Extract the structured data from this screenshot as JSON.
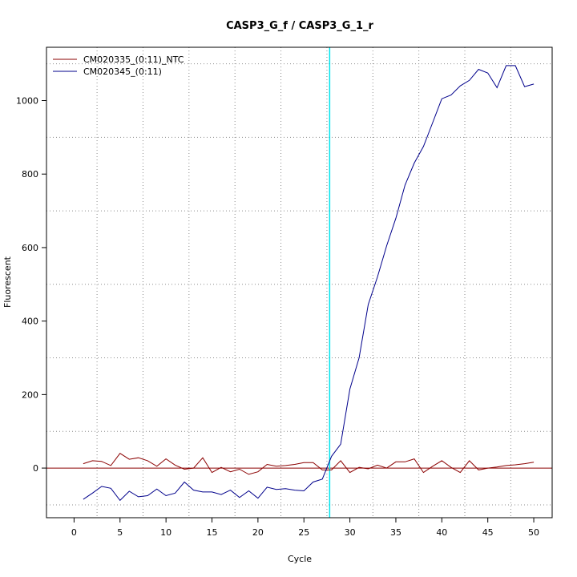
{
  "chart_data": {
    "type": "line",
    "title": "CASP3_G_f / CASP3_G_1_r",
    "xlabel": "Cycle",
    "ylabel": "Fluorescent",
    "xlim": [
      -3,
      52
    ],
    "ylim": [
      -135,
      1145
    ],
    "x_ticks": [
      0,
      5,
      10,
      15,
      20,
      25,
      30,
      35,
      40,
      45,
      50
    ],
    "y_ticks": [
      0,
      200,
      400,
      600,
      800,
      1000
    ],
    "grid": true,
    "legend_position": "top-left",
    "threshold": {
      "x": 27.8,
      "color": "#00e5ee"
    },
    "baseline": {
      "y": 0,
      "color": "#8b0000"
    },
    "x": [
      1,
      2,
      3,
      4,
      5,
      6,
      7,
      8,
      9,
      10,
      11,
      12,
      13,
      14,
      15,
      16,
      17,
      18,
      19,
      20,
      21,
      22,
      23,
      24,
      25,
      26,
      27,
      28,
      29,
      30,
      31,
      32,
      33,
      34,
      35,
      36,
      37,
      38,
      39,
      40,
      41,
      42,
      43,
      44,
      45,
      46,
      47,
      48,
      49,
      50
    ],
    "series": [
      {
        "name": "CM020335_(0:11)_NTC",
        "color": "#8b0000",
        "values": [
          12,
          20,
          18,
          7,
          40,
          24,
          28,
          20,
          5,
          25,
          8,
          -3,
          0,
          28,
          -12,
          2,
          -10,
          -3,
          -17,
          -10,
          10,
          5,
          7,
          10,
          15,
          15,
          -5,
          -5,
          20,
          -12,
          2,
          -2,
          8,
          0,
          17,
          17,
          25,
          -12,
          5,
          20,
          2,
          -12,
          20,
          -5,
          0,
          3,
          7,
          9,
          12,
          16
        ]
      },
      {
        "name": "CM020345_(0:11)",
        "color": "#00008b",
        "values": [
          -85,
          -68,
          -50,
          -55,
          -88,
          -63,
          -78,
          -75,
          -57,
          -75,
          -68,
          -38,
          -60,
          -65,
          -65,
          -72,
          -60,
          -80,
          -62,
          -82,
          -52,
          -58,
          -56,
          -60,
          -62,
          -38,
          -30,
          32,
          65,
          215,
          300,
          445,
          520,
          605,
          680,
          770,
          830,
          875,
          940,
          1005,
          1015,
          1040,
          1055,
          1085,
          1075,
          1035,
          1095,
          1095,
          1038,
          1045
        ]
      }
    ]
  }
}
